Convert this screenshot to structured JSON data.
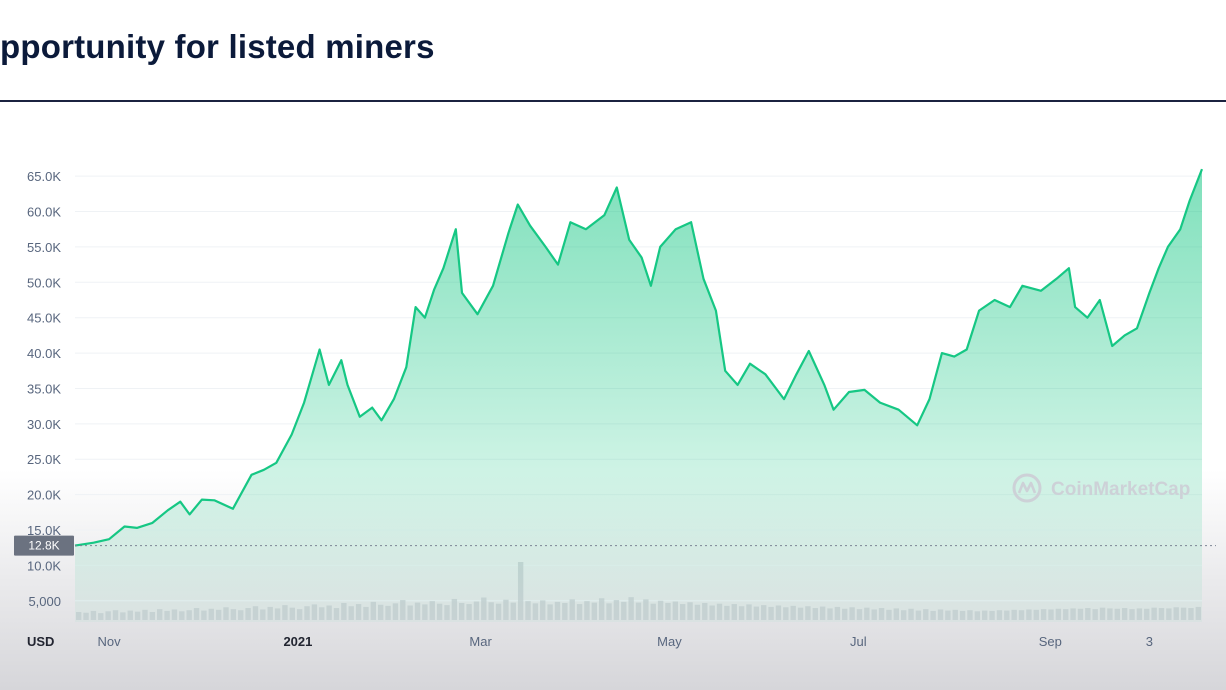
{
  "slide": {
    "title": "pportunity for listed miners"
  },
  "watermark": {
    "text": "CoinMarketCap",
    "icon": "coinmarketcap-logo-icon"
  },
  "colors": {
    "line": "#16c784",
    "area_top": "#16c784",
    "grid": "#eff2f5",
    "volume": "#c8ccd2",
    "price_tag_bg": "#6b7280"
  },
  "chart_data": {
    "type": "area",
    "title": "",
    "xlabel": "",
    "ylabel": "",
    "currency_label": "USD",
    "current_price_label": "12.8K",
    "current_price": 12800,
    "ylim": [
      2000,
      67000
    ],
    "yticks": [
      5000,
      10000,
      15000,
      20000,
      25000,
      30000,
      35000,
      40000,
      45000,
      50000,
      55000,
      60000,
      65000
    ],
    "ytick_labels": [
      "5,000",
      "10.0K",
      "15.0K",
      "20.0K",
      "25.0K",
      "30.0K",
      "35.0K",
      "40.0K",
      "45.0K",
      "50.0K",
      "55.0K",
      "60.0K",
      "65.0K"
    ],
    "x_range": [
      "2020-10-21",
      "2021-10-20"
    ],
    "xticks": [
      {
        "date": "2020-11-01",
        "label": "Nov",
        "bold": false
      },
      {
        "date": "2021-01-01",
        "label": "2021",
        "bold": true
      },
      {
        "date": "2021-03-01",
        "label": "Mar",
        "bold": false
      },
      {
        "date": "2021-05-01",
        "label": "May",
        "bold": false
      },
      {
        "date": "2021-07-01",
        "label": "Jul",
        "bold": false
      },
      {
        "date": "2021-09-01",
        "label": "Sep",
        "bold": false
      },
      {
        "date": "2021-10-03",
        "label": "3",
        "bold": false
      }
    ],
    "series": [
      {
        "points": [
          [
            "2020-10-21",
            12800
          ],
          [
            "2020-10-27",
            13200
          ],
          [
            "2020-11-01",
            13700
          ],
          [
            "2020-11-06",
            15500
          ],
          [
            "2020-11-10",
            15300
          ],
          [
            "2020-11-15",
            16000
          ],
          [
            "2020-11-20",
            17800
          ],
          [
            "2020-11-24",
            19000
          ],
          [
            "2020-11-27",
            17200
          ],
          [
            "2020-12-01",
            19300
          ],
          [
            "2020-12-05",
            19200
          ],
          [
            "2020-12-11",
            18000
          ],
          [
            "2020-12-17",
            22800
          ],
          [
            "2020-12-21",
            23500
          ],
          [
            "2020-12-25",
            24500
          ],
          [
            "2020-12-30",
            28500
          ],
          [
            "2021-01-03",
            33000
          ],
          [
            "2021-01-08",
            40500
          ],
          [
            "2021-01-11",
            35500
          ],
          [
            "2021-01-15",
            39000
          ],
          [
            "2021-01-17",
            35500
          ],
          [
            "2021-01-21",
            31000
          ],
          [
            "2021-01-25",
            32300
          ],
          [
            "2021-01-28",
            30500
          ],
          [
            "2021-02-01",
            33500
          ],
          [
            "2021-02-05",
            38000
          ],
          [
            "2021-02-08",
            46500
          ],
          [
            "2021-02-11",
            45000
          ],
          [
            "2021-02-14",
            49000
          ],
          [
            "2021-02-17",
            52000
          ],
          [
            "2021-02-21",
            57500
          ],
          [
            "2021-02-23",
            48500
          ],
          [
            "2021-02-28",
            45500
          ],
          [
            "2021-03-05",
            49500
          ],
          [
            "2021-03-10",
            57000
          ],
          [
            "2021-03-13",
            61000
          ],
          [
            "2021-03-17",
            58000
          ],
          [
            "2021-03-22",
            55000
          ],
          [
            "2021-03-26",
            52500
          ],
          [
            "2021-03-30",
            58500
          ],
          [
            "2021-04-04",
            57500
          ],
          [
            "2021-04-10",
            59500
          ],
          [
            "2021-04-14",
            63400
          ],
          [
            "2021-04-18",
            56000
          ],
          [
            "2021-04-22",
            53500
          ],
          [
            "2021-04-25",
            49500
          ],
          [
            "2021-04-28",
            55000
          ],
          [
            "2021-05-03",
            57500
          ],
          [
            "2021-05-08",
            58500
          ],
          [
            "2021-05-12",
            50500
          ],
          [
            "2021-05-16",
            46000
          ],
          [
            "2021-05-19",
            37500
          ],
          [
            "2021-05-23",
            35500
          ],
          [
            "2021-05-27",
            38500
          ],
          [
            "2021-06-01",
            37000
          ],
          [
            "2021-06-07",
            33500
          ],
          [
            "2021-06-11",
            37000
          ],
          [
            "2021-06-15",
            40300
          ],
          [
            "2021-06-20",
            35500
          ],
          [
            "2021-06-23",
            32000
          ],
          [
            "2021-06-28",
            34500
          ],
          [
            "2021-07-03",
            34800
          ],
          [
            "2021-07-08",
            33000
          ],
          [
            "2021-07-14",
            32000
          ],
          [
            "2021-07-20",
            29800
          ],
          [
            "2021-07-24",
            33500
          ],
          [
            "2021-07-28",
            40000
          ],
          [
            "2021-08-01",
            39500
          ],
          [
            "2021-08-05",
            40500
          ],
          [
            "2021-08-09",
            46000
          ],
          [
            "2021-08-14",
            47500
          ],
          [
            "2021-08-19",
            46500
          ],
          [
            "2021-08-23",
            49500
          ],
          [
            "2021-08-29",
            48800
          ],
          [
            "2021-09-03",
            50500
          ],
          [
            "2021-09-07",
            52000
          ],
          [
            "2021-09-09",
            46500
          ],
          [
            "2021-09-13",
            45000
          ],
          [
            "2021-09-17",
            47500
          ],
          [
            "2021-09-21",
            41000
          ],
          [
            "2021-09-25",
            42500
          ],
          [
            "2021-09-29",
            43500
          ],
          [
            "2021-10-03",
            48500
          ],
          [
            "2021-10-06",
            52000
          ],
          [
            "2021-10-09",
            55000
          ],
          [
            "2021-10-13",
            57500
          ],
          [
            "2021-10-16",
            61500
          ],
          [
            "2021-10-20",
            66000
          ]
        ]
      }
    ],
    "volume": {
      "ylim": [
        0,
        160
      ],
      "values": [
        22,
        20,
        25,
        19,
        24,
        27,
        21,
        26,
        23,
        28,
        22,
        30,
        25,
        29,
        24,
        27,
        33,
        26,
        31,
        28,
        35,
        30,
        27,
        33,
        38,
        29,
        36,
        32,
        41,
        34,
        30,
        38,
        43,
        35,
        40,
        33,
        47,
        38,
        44,
        36,
        50,
        42,
        39,
        46,
        55,
        40,
        48,
        43,
        52,
        45,
        41,
        58,
        47,
        44,
        51,
        62,
        49,
        45,
        56,
        48,
        160,
        52,
        46,
        54,
        43,
        50,
        47,
        57,
        44,
        52,
        48,
        60,
        46,
        55,
        50,
        63,
        48,
        57,
        45,
        53,
        47,
        51,
        44,
        49,
        42,
        47,
        40,
        45,
        39,
        44,
        38,
        43,
        37,
        41,
        36,
        40,
        35,
        39,
        34,
        38,
        33,
        37,
        32,
        36,
        31,
        35,
        30,
        34,
        29,
        33,
        28,
        32,
        27,
        31,
        26,
        30,
        25,
        29,
        26,
        28,
        25,
        27,
        24,
        26,
        25,
        27,
        26,
        28,
        27,
        29,
        28,
        30,
        29,
        31,
        30,
        32,
        31,
        33,
        30,
        34,
        32,
        31,
        33,
        30,
        32,
        31,
        34,
        33,
        32,
        35,
        34,
        33,
        36
      ]
    },
    "grid": true,
    "legend": "none"
  }
}
